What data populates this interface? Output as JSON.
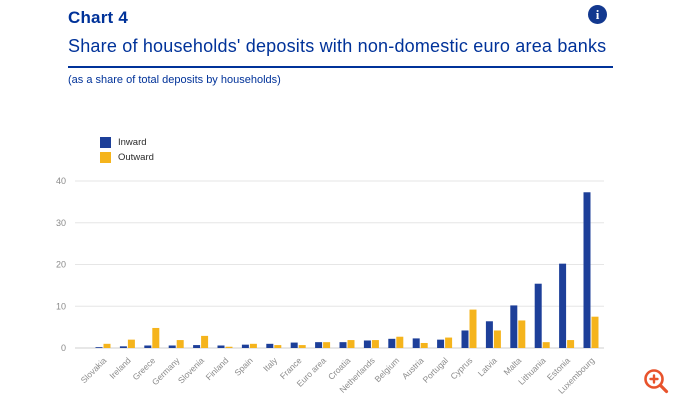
{
  "header": {
    "kicker": "Chart 4",
    "title": "Share of households' deposits with non-domestic euro area banks",
    "caption": "(as a share of total deposits by households)"
  },
  "icons": {
    "info": "info-icon",
    "info_glyph": "i",
    "zoom": "zoom-in-icon"
  },
  "colors": {
    "heading": "#003299",
    "inward_bar": "#1d3f99",
    "outward_bar": "#f5b41c",
    "gridline": "#e6e6e6",
    "axis_line": "#cfcfcf",
    "tick_label": "#8a8a8a",
    "zoom_icon": "#e8532c"
  },
  "chart_data": {
    "type": "bar",
    "title": "Share of households' deposits with non-domestic euro area banks",
    "subtitle": "(as a share of total deposits by households)",
    "categories": [
      "Slovakia",
      "Ireland",
      "Greece",
      "Germany",
      "Slovenia",
      "Finland",
      "Spain",
      "Italy",
      "France",
      "Euro area",
      "Croatia",
      "Netherlands",
      "Belgium",
      "Austria",
      "Portugal",
      "Cyprus",
      "Latvia",
      "Malta",
      "Lithuania",
      "Estonia",
      "Luxembourg"
    ],
    "series": [
      {
        "name": "Inward",
        "color": "#1d3f99",
        "values": [
          0.2,
          0.4,
          0.6,
          0.6,
          0.7,
          0.6,
          0.8,
          1.0,
          1.3,
          1.4,
          1.4,
          1.8,
          2.2,
          2.3,
          2.0,
          4.2,
          6.4,
          10.2,
          15.4,
          20.2,
          37.3
        ]
      },
      {
        "name": "Outward",
        "color": "#f5b41c",
        "values": [
          1.0,
          2.0,
          4.8,
          1.9,
          2.9,
          0.3,
          1.0,
          0.7,
          0.7,
          1.4,
          1.9,
          1.9,
          2.7,
          1.2,
          2.5,
          9.2,
          4.2,
          6.6,
          1.4,
          1.9,
          7.5
        ]
      }
    ],
    "xlabel": "",
    "ylabel": "",
    "ylim": [
      0,
      40
    ],
    "yticks": [
      0,
      10,
      20,
      30,
      40
    ],
    "grid": true,
    "legend_position": "top-left"
  }
}
